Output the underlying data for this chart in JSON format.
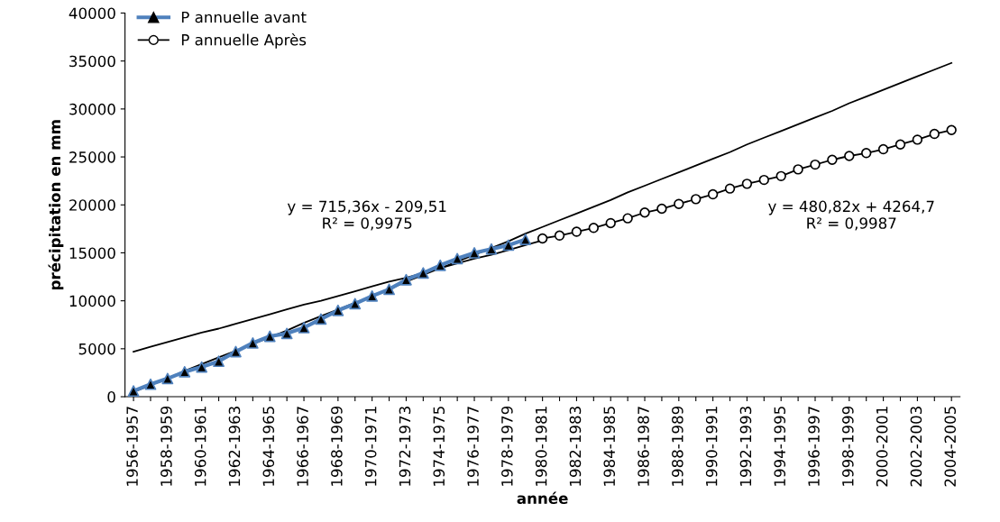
{
  "chart_data": {
    "type": "line",
    "xlabel": "année",
    "ylabel": "précipitation en mm",
    "categories": [
      "1956-1957",
      null,
      "1958-1959",
      null,
      "1960-1961",
      null,
      "1962-1963",
      null,
      "1964-1965",
      null,
      "1966-1967",
      null,
      "1968-1969",
      null,
      "1970-1971",
      null,
      "1972-1973",
      null,
      "1974-1975",
      null,
      "1976-1977",
      null,
      "1978-1979",
      null,
      "1980-1981",
      null,
      "1982-1983",
      null,
      "1984-1985",
      null,
      "1986-1987",
      null,
      "1988-1989",
      null,
      "1990-1991",
      null,
      "1992-1993",
      null,
      "1994-1995",
      null,
      "1996-1997",
      null,
      "1998-1999",
      null,
      "2000-2001",
      null,
      "2002-2003",
      null,
      "2004-2005"
    ],
    "series": [
      {
        "name": "P annuelle avant",
        "color": "#4f81bd",
        "marker": "triangle",
        "values": [
          600,
          1300,
          1900,
          2600,
          3100,
          3700,
          4700,
          5600,
          6300,
          6600,
          7200,
          8100,
          9000,
          9700,
          10500,
          11200,
          12200,
          12900,
          13700,
          14400,
          15000,
          15400,
          15800,
          16400,
          null,
          null,
          null,
          null,
          null,
          null,
          null,
          null,
          null,
          null,
          null,
          null,
          null,
          null,
          null,
          null,
          null,
          null,
          null,
          null,
          null,
          null,
          null,
          null,
          null
        ]
      },
      {
        "name": "P annuelle Après",
        "color": "#000000",
        "marker": "circle",
        "values": [
          null,
          null,
          null,
          null,
          null,
          null,
          null,
          null,
          null,
          null,
          null,
          null,
          null,
          null,
          null,
          null,
          null,
          null,
          null,
          null,
          null,
          null,
          null,
          null,
          16500,
          16800,
          17200,
          17600,
          18100,
          18600,
          19200,
          19600,
          20100,
          20600,
          21100,
          21700,
          22200,
          22600,
          23000,
          23700,
          24200,
          24700,
          25100,
          25400,
          25800,
          26300,
          26800,
          27400,
          27800
        ]
      },
      {
        "color": "#000000",
        "marker": "none",
        "values": [
          500,
          1200,
          1900,
          2700,
          3400,
          4100,
          4800,
          5500,
          6200,
          6900,
          7700,
          8400,
          9100,
          9800,
          10500,
          11200,
          12000,
          12700,
          13400,
          14100,
          14800,
          15500,
          16200,
          17000,
          17700,
          18400,
          19100,
          19800,
          20500,
          21300,
          22000,
          22700,
          23400,
          24100,
          24800,
          25500,
          26300,
          27000,
          27700,
          28400,
          29100,
          29800,
          30600,
          31300,
          32000,
          32700,
          33400,
          34100,
          34800
        ]
      },
      {
        "color": "#000000",
        "marker": "none",
        "values": [
          4700,
          5200,
          5700,
          6200,
          6700,
          7100,
          7600,
          8100,
          8600,
          9100,
          9600,
          10000,
          10500,
          11000,
          11500,
          12000,
          12400,
          12900,
          13400,
          13900,
          14400,
          14800,
          15300,
          15800,
          16300,
          null,
          null,
          null,
          null,
          null,
          null,
          null,
          null,
          null,
          null,
          null,
          null,
          null,
          null,
          null,
          null,
          null,
          null,
          null,
          null,
          null,
          null,
          null,
          null
        ]
      }
    ],
    "ylim": [
      0,
      40000
    ],
    "yticks": [
      0,
      5000,
      10000,
      15000,
      20000,
      25000,
      30000,
      35000,
      40000
    ],
    "grid": false,
    "legend": "top left",
    "annotations": [
      "y = 715,36x - 209,51\nR² = 0,9975",
      "y = 480,82x + 4264,7\nR² = 0,9987"
    ]
  }
}
